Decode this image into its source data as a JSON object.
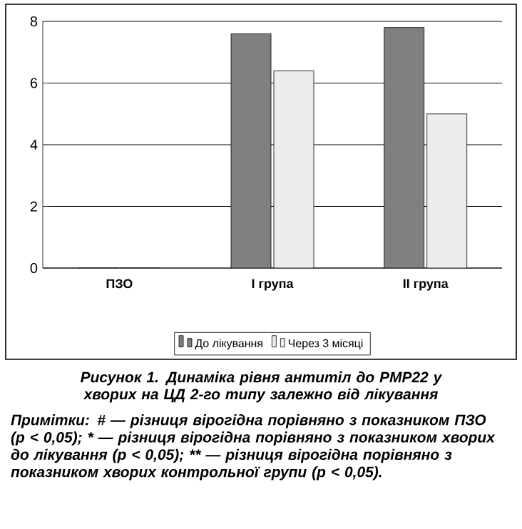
{
  "chart_data": {
    "type": "bar",
    "title": "Рисунок 1. Динаміка рівня антитіл до PMP22 у хворих на ЦД 2-го типу залежно від лікування",
    "annotations": [
      "Примітки: # — різниця вірогідна порівняно з показником ПЗО (p < 0,05); * — різниця вірогідна порівняно з показником хворих до лікування (p < 0,05); ** — різниця вірогідна порівняно з показником хворих контрольної групи (p < 0,05)."
    ],
    "categories": [
      "ПЗО",
      "І група",
      "ІІ група"
    ],
    "series": [
      {
        "name": "До лікування",
        "color": "#808080",
        "values": [
          0,
          7.6,
          7.8
        ]
      },
      {
        "name": "Через 3 місяці",
        "color": "#ececec",
        "values": [
          0,
          6.4,
          5.0
        ]
      }
    ],
    "ylim": [
      0,
      8
    ],
    "yticks": [
      0,
      2,
      4,
      6,
      8
    ],
    "grid": "y",
    "legend": "bottom"
  }
}
